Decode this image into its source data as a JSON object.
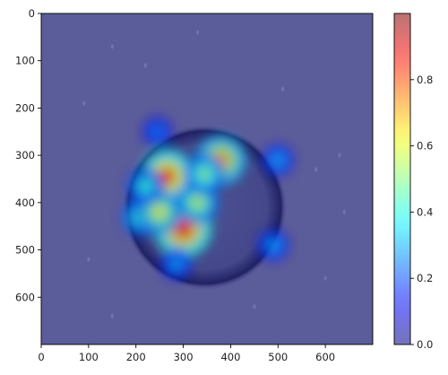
{
  "chart_data": {
    "type": "heatmap",
    "title": "",
    "xlabel": "",
    "ylabel": "",
    "xlim": [
      0,
      700
    ],
    "ylim": [
      700,
      0
    ],
    "x_ticks": [
      0,
      100,
      200,
      300,
      400,
      500,
      600
    ],
    "y_ticks": [
      0,
      100,
      200,
      300,
      400,
      500,
      600
    ],
    "x_tick_labels": [
      "0",
      "100",
      "200",
      "300",
      "400",
      "500",
      "600"
    ],
    "y_tick_labels": [
      "0",
      "100",
      "200",
      "300",
      "400",
      "500",
      "600"
    ],
    "colormap": "jet",
    "overlay_alpha": 0.5,
    "colorbar": {
      "range": [
        0,
        1
      ],
      "ticks": [
        0.0,
        0.2,
        0.4,
        0.6,
        0.8
      ],
      "tick_labels": [
        "0.0",
        "0.2",
        "0.4",
        "0.6",
        "0.8"
      ],
      "placement": "right"
    },
    "background": {
      "description_color": "#b7b9b5",
      "cell_center": [
        345,
        410
      ],
      "cell_radius": 175
    },
    "hotspots": [
      {
        "x": 265,
        "y": 345,
        "value": 0.82
      },
      {
        "x": 300,
        "y": 455,
        "value": 0.88
      },
      {
        "x": 380,
        "y": 310,
        "value": 0.72
      },
      {
        "x": 210,
        "y": 430,
        "value": 0.45
      },
      {
        "x": 330,
        "y": 400,
        "value": 0.55
      },
      {
        "x": 250,
        "y": 420,
        "value": 0.6
      },
      {
        "x": 245,
        "y": 250,
        "value": 0.25
      },
      {
        "x": 500,
        "y": 310,
        "value": 0.3
      },
      {
        "x": 490,
        "y": 490,
        "value": 0.3
      },
      {
        "x": 285,
        "y": 530,
        "value": 0.3
      },
      {
        "x": 345,
        "y": 340,
        "value": 0.5
      },
      {
        "x": 220,
        "y": 365,
        "value": 0.42
      }
    ]
  },
  "colors": {
    "low": "#00007f",
    "axis": "#000000"
  }
}
